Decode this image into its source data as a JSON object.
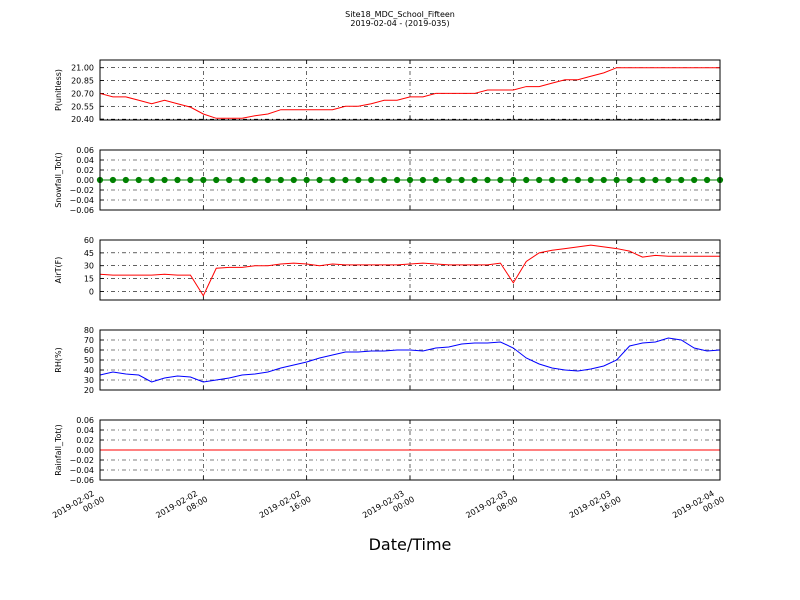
{
  "figure": {
    "title": "Site18_MDC_School_Fifteen",
    "subtitle": "2019-02-04 - (2019-035)",
    "xlabel": "Date/Time"
  },
  "chart_data": [
    {
      "type": "line",
      "ylabel": "P(unitless)",
      "color": "#ff0000",
      "grid": true,
      "xlim": [
        "2019-02-02 00:00",
        "2019-02-04 00:00"
      ],
      "ylim": [
        20.39,
        21.09
      ],
      "yticks": [
        {
          "value": 20.4,
          "label": "20.40"
        },
        20.55,
        {
          "value": 20.7,
          "label": "20.70"
        },
        20.85,
        {
          "value": 21.0,
          "label": "21.00"
        }
      ],
      "x": [
        "2019-02-02 00:00",
        "2019-02-02 01:00",
        "2019-02-02 02:00",
        "2019-02-02 03:00",
        "2019-02-02 04:00",
        "2019-02-02 05:00",
        "2019-02-02 06:00",
        "2019-02-02 07:00",
        "2019-02-02 08:00",
        "2019-02-02 09:00",
        "2019-02-02 10:00",
        "2019-02-02 11:00",
        "2019-02-02 12:00",
        "2019-02-02 13:00",
        "2019-02-02 14:00",
        "2019-02-02 15:00",
        "2019-02-02 16:00",
        "2019-02-02 17:00",
        "2019-02-02 18:00",
        "2019-02-02 19:00",
        "2019-02-02 20:00",
        "2019-02-02 21:00",
        "2019-02-02 22:00",
        "2019-02-02 23:00",
        "2019-02-03 00:00",
        "2019-02-03 01:00",
        "2019-02-03 02:00",
        "2019-02-03 03:00",
        "2019-02-03 04:00",
        "2019-02-03 05:00",
        "2019-02-03 06:00",
        "2019-02-03 07:00",
        "2019-02-03 08:00",
        "2019-02-03 09:00",
        "2019-02-03 10:00",
        "2019-02-03 11:00",
        "2019-02-03 12:00",
        "2019-02-03 13:00",
        "2019-02-03 14:00",
        "2019-02-03 15:00",
        "2019-02-03 16:00",
        "2019-02-03 17:00",
        "2019-02-03 18:00",
        "2019-02-03 19:00",
        "2019-02-03 20:00",
        "2019-02-03 21:00",
        "2019-02-03 22:00",
        "2019-02-03 23:00",
        "2019-02-04 00:00"
      ],
      "values": [
        20.7,
        20.66,
        20.66,
        20.62,
        20.58,
        20.62,
        20.58,
        20.54,
        20.46,
        20.41,
        20.41,
        20.41,
        20.44,
        20.46,
        20.51,
        20.51,
        20.51,
        20.51,
        20.51,
        20.55,
        20.55,
        20.58,
        20.62,
        20.62,
        20.66,
        20.66,
        20.7,
        20.7,
        20.7,
        20.7,
        20.74,
        20.74,
        20.74,
        20.78,
        20.78,
        20.82,
        20.86,
        20.86,
        20.9,
        20.94,
        21.0,
        21.0,
        21.0,
        21.0,
        21.0,
        21.0,
        21.0,
        21.0,
        21.0
      ]
    },
    {
      "type": "line",
      "ylabel": "Snowfall_Tot()",
      "color": "#008000",
      "marker": true,
      "grid": true,
      "xlim": [
        "2019-02-02 00:00",
        "2019-02-04 00:00"
      ],
      "ylim": [
        -0.06,
        0.06
      ],
      "yticks": [
        {
          "value": -0.06,
          "label": "−0.06"
        },
        {
          "value": -0.04,
          "label": "−0.04"
        },
        {
          "value": -0.02,
          "label": "−0.02"
        },
        {
          "value": 0,
          "label": "0.00"
        },
        0.02,
        0.04,
        0.06
      ],
      "x": [
        "2019-02-02 00:00",
        "2019-02-02 01:00",
        "2019-02-02 02:00",
        "2019-02-02 03:00",
        "2019-02-02 04:00",
        "2019-02-02 05:00",
        "2019-02-02 06:00",
        "2019-02-02 07:00",
        "2019-02-02 08:00",
        "2019-02-02 09:00",
        "2019-02-02 10:00",
        "2019-02-02 11:00",
        "2019-02-02 12:00",
        "2019-02-02 13:00",
        "2019-02-02 14:00",
        "2019-02-02 15:00",
        "2019-02-02 16:00",
        "2019-02-02 17:00",
        "2019-02-02 18:00",
        "2019-02-02 19:00",
        "2019-02-02 20:00",
        "2019-02-02 21:00",
        "2019-02-02 22:00",
        "2019-02-02 23:00",
        "2019-02-03 00:00",
        "2019-02-03 01:00",
        "2019-02-03 02:00",
        "2019-02-03 03:00",
        "2019-02-03 04:00",
        "2019-02-03 05:00",
        "2019-02-03 06:00",
        "2019-02-03 07:00",
        "2019-02-03 08:00",
        "2019-02-03 09:00",
        "2019-02-03 10:00",
        "2019-02-03 11:00",
        "2019-02-03 12:00",
        "2019-02-03 13:00",
        "2019-02-03 14:00",
        "2019-02-03 15:00",
        "2019-02-03 16:00",
        "2019-02-03 17:00",
        "2019-02-03 18:00",
        "2019-02-03 19:00",
        "2019-02-03 20:00",
        "2019-02-03 21:00",
        "2019-02-03 22:00",
        "2019-02-03 23:00",
        "2019-02-04 00:00"
      ],
      "values": [
        0,
        0,
        0,
        0,
        0,
        0,
        0,
        0,
        0,
        0,
        0,
        0,
        0,
        0,
        0,
        0,
        0,
        0,
        0,
        0,
        0,
        0,
        0,
        0,
        0,
        0,
        0,
        0,
        0,
        0,
        0,
        0,
        0,
        0,
        0,
        0,
        0,
        0,
        0,
        0,
        0,
        0,
        0,
        0,
        0,
        0,
        0,
        0,
        0
      ]
    },
    {
      "type": "line",
      "ylabel": "AirT(F)",
      "color": "#ff0000",
      "grid": true,
      "xlim": [
        "2019-02-02 00:00",
        "2019-02-04 00:00"
      ],
      "ylim": [
        -10,
        60
      ],
      "yticks": [
        0,
        15,
        30,
        45,
        60
      ],
      "x": [
        "2019-02-02 00:00",
        "2019-02-02 01:00",
        "2019-02-02 02:00",
        "2019-02-02 03:00",
        "2019-02-02 04:00",
        "2019-02-02 05:00",
        "2019-02-02 06:00",
        "2019-02-02 07:00",
        "2019-02-02 08:00",
        "2019-02-02 09:00",
        "2019-02-02 10:00",
        "2019-02-02 11:00",
        "2019-02-02 12:00",
        "2019-02-02 13:00",
        "2019-02-02 14:00",
        "2019-02-02 15:00",
        "2019-02-02 16:00",
        "2019-02-02 17:00",
        "2019-02-02 18:00",
        "2019-02-02 19:00",
        "2019-02-02 20:00",
        "2019-02-02 21:00",
        "2019-02-02 22:00",
        "2019-02-02 23:00",
        "2019-02-03 00:00",
        "2019-02-03 01:00",
        "2019-02-03 02:00",
        "2019-02-03 03:00",
        "2019-02-03 04:00",
        "2019-02-03 05:00",
        "2019-02-03 06:00",
        "2019-02-03 07:00",
        "2019-02-03 08:00",
        "2019-02-03 09:00",
        "2019-02-03 10:00",
        "2019-02-03 11:00",
        "2019-02-03 12:00",
        "2019-02-03 13:00",
        "2019-02-03 14:00",
        "2019-02-03 15:00",
        "2019-02-03 16:00",
        "2019-02-03 17:00",
        "2019-02-03 18:00",
        "2019-02-03 19:00",
        "2019-02-03 20:00",
        "2019-02-03 21:00",
        "2019-02-03 22:00",
        "2019-02-03 23:00",
        "2019-02-04 00:00"
      ],
      "values": [
        20,
        19,
        19,
        19,
        19,
        20,
        19,
        19,
        -5,
        27,
        28,
        28,
        30,
        30,
        32,
        33,
        32,
        30,
        32,
        31,
        31,
        31,
        31,
        31,
        32,
        33,
        32,
        31,
        31,
        31,
        31,
        33,
        10,
        35,
        45,
        48,
        50,
        52,
        54,
        52,
        50,
        47,
        40,
        42,
        41,
        41,
        41,
        41,
        41
      ]
    },
    {
      "type": "line",
      "ylabel": "RH(%)",
      "color": "#0000ff",
      "grid": true,
      "xlim": [
        "2019-02-02 00:00",
        "2019-02-04 00:00"
      ],
      "ylim": [
        20,
        80
      ],
      "yticks": [
        20,
        30,
        40,
        50,
        60,
        70,
        80
      ],
      "x": [
        "2019-02-02 00:00",
        "2019-02-02 01:00",
        "2019-02-02 02:00",
        "2019-02-02 03:00",
        "2019-02-02 04:00",
        "2019-02-02 05:00",
        "2019-02-02 06:00",
        "2019-02-02 07:00",
        "2019-02-02 08:00",
        "2019-02-02 09:00",
        "2019-02-02 10:00",
        "2019-02-02 11:00",
        "2019-02-02 12:00",
        "2019-02-02 13:00",
        "2019-02-02 14:00",
        "2019-02-02 15:00",
        "2019-02-02 16:00",
        "2019-02-02 17:00",
        "2019-02-02 18:00",
        "2019-02-02 19:00",
        "2019-02-02 20:00",
        "2019-02-02 21:00",
        "2019-02-02 22:00",
        "2019-02-02 23:00",
        "2019-02-03 00:00",
        "2019-02-03 01:00",
        "2019-02-03 02:00",
        "2019-02-03 03:00",
        "2019-02-03 04:00",
        "2019-02-03 05:00",
        "2019-02-03 06:00",
        "2019-02-03 07:00",
        "2019-02-03 08:00",
        "2019-02-03 09:00",
        "2019-02-03 10:00",
        "2019-02-03 11:00",
        "2019-02-03 12:00",
        "2019-02-03 13:00",
        "2019-02-03 14:00",
        "2019-02-03 15:00",
        "2019-02-03 16:00",
        "2019-02-03 17:00",
        "2019-02-03 18:00",
        "2019-02-03 19:00",
        "2019-02-03 20:00",
        "2019-02-03 21:00",
        "2019-02-03 22:00",
        "2019-02-03 23:00",
        "2019-02-04 00:00"
      ],
      "values": [
        35,
        38,
        36,
        35,
        28,
        32,
        34,
        33,
        28,
        30,
        32,
        35,
        36,
        38,
        42,
        45,
        48,
        52,
        55,
        58,
        58,
        59,
        59,
        60,
        60,
        59,
        62,
        63,
        66,
        67,
        67,
        68,
        62,
        52,
        46,
        42,
        40,
        39,
        41,
        44,
        50,
        64,
        67,
        68,
        72,
        70,
        62,
        59,
        60
      ]
    },
    {
      "type": "line",
      "ylabel": "Rainfall_Tot()",
      "color": "#ff0000",
      "grid": true,
      "xlim": [
        "2019-02-02 00:00",
        "2019-02-04 00:00"
      ],
      "ylim": [
        -0.06,
        0.06
      ],
      "yticks": [
        {
          "value": -0.06,
          "label": "−0.06"
        },
        {
          "value": -0.04,
          "label": "−0.04"
        },
        {
          "value": -0.02,
          "label": "−0.02"
        },
        {
          "value": 0,
          "label": "0.00"
        },
        0.02,
        0.04,
        0.06
      ],
      "xticks": [
        {
          "value": "2019-02-02 00:00",
          "label": "2019-02-02\n00:00"
        },
        {
          "value": "2019-02-02 08:00",
          "label": "2019-02-02\n08:00"
        },
        {
          "value": "2019-02-02 16:00",
          "label": "2019-02-02\n16:00"
        },
        {
          "value": "2019-02-03 00:00",
          "label": "2019-02-03\n00:00"
        },
        {
          "value": "2019-02-03 08:00",
          "label": "2019-02-03\n08:00"
        },
        {
          "value": "2019-02-03 16:00",
          "label": "2019-02-03\n16:00"
        },
        {
          "value": "2019-02-04 00:00",
          "label": "2019-02-04\n00:00"
        }
      ],
      "x": [
        "2019-02-02 00:00",
        "2019-02-02 01:00",
        "2019-02-02 02:00",
        "2019-02-02 03:00",
        "2019-02-02 04:00",
        "2019-02-02 05:00",
        "2019-02-02 06:00",
        "2019-02-02 07:00",
        "2019-02-02 08:00",
        "2019-02-02 09:00",
        "2019-02-02 10:00",
        "2019-02-02 11:00",
        "2019-02-02 12:00",
        "2019-02-02 13:00",
        "2019-02-02 14:00",
        "2019-02-02 15:00",
        "2019-02-02 16:00",
        "2019-02-02 17:00",
        "2019-02-02 18:00",
        "2019-02-02 19:00",
        "2019-02-02 20:00",
        "2019-02-02 21:00",
        "2019-02-02 22:00",
        "2019-02-02 23:00",
        "2019-02-03 00:00",
        "2019-02-03 01:00",
        "2019-02-03 02:00",
        "2019-02-03 03:00",
        "2019-02-03 04:00",
        "2019-02-03 05:00",
        "2019-02-03 06:00",
        "2019-02-03 07:00",
        "2019-02-03 08:00",
        "2019-02-03 09:00",
        "2019-02-03 10:00",
        "2019-02-03 11:00",
        "2019-02-03 12:00",
        "2019-02-03 13:00",
        "2019-02-03 14:00",
        "2019-02-03 15:00",
        "2019-02-03 16:00",
        "2019-02-03 17:00",
        "2019-02-03 18:00",
        "2019-02-03 19:00",
        "2019-02-03 20:00",
        "2019-02-03 21:00",
        "2019-02-03 22:00",
        "2019-02-03 23:00",
        "2019-02-04 00:00"
      ],
      "values": [
        0,
        0,
        0,
        0,
        0,
        0,
        0,
        0,
        0,
        0,
        0,
        0,
        0,
        0,
        0,
        0,
        0,
        0,
        0,
        0,
        0,
        0,
        0,
        0,
        0,
        0,
        0,
        0,
        0,
        0,
        0,
        0,
        0,
        0,
        0,
        0,
        0,
        0,
        0,
        0,
        0,
        0,
        0,
        0,
        0,
        0,
        0,
        0,
        0
      ]
    }
  ]
}
